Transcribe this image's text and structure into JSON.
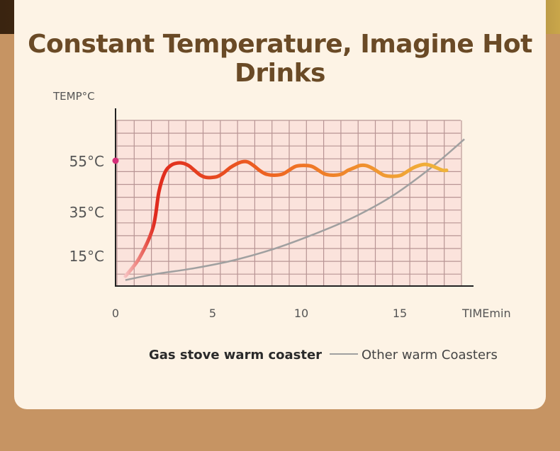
{
  "chart_data": {
    "type": "line",
    "title": "Constant Temperature, Imagine Hot Drinks",
    "ylabel": "TEMP°C",
    "xlabel": "TIMEmin",
    "x_ticks": [
      "0",
      "5",
      "10",
      "15"
    ],
    "y_ticks": [
      "15°C",
      "35°C",
      "55°C"
    ],
    "y_tick_values": [
      15,
      35,
      55
    ],
    "xlim": [
      0,
      18
    ],
    "ylim": [
      0,
      70
    ],
    "grid": true,
    "legend_position": "bottom",
    "series": [
      {
        "name": "Gas stove warm coaster",
        "colors": [
          "#e02a1e",
          "#f0b23a"
        ],
        "x": [
          0.5,
          1.2,
          1.9,
          2.2,
          2.5,
          2.8,
          3.1,
          3.4,
          3.7,
          4.0,
          4.3,
          4.6,
          4.9,
          5.2,
          5.5,
          5.8,
          6.1,
          6.4,
          6.7,
          7.0,
          7.3,
          7.6,
          7.9,
          8.2,
          8.5,
          8.8,
          9.1,
          9.4,
          9.7,
          10.0,
          10.3,
          10.6,
          10.9,
          11.2,
          11.5,
          11.8,
          12.1,
          12.4,
          12.7,
          13.0,
          13.3,
          13.6,
          13.9,
          14.2,
          14.5,
          14.8,
          15.1,
          15.4,
          15.7,
          16.0,
          16.3,
          16.6,
          16.8
        ],
        "y": [
          5,
          14,
          27,
          42,
          50,
          53,
          54,
          54,
          53,
          51,
          49,
          48,
          48,
          48.5,
          50,
          52,
          53.5,
          54.5,
          54.5,
          53,
          51,
          49.5,
          49,
          49,
          49.5,
          51,
          52.5,
          53,
          53,
          52.5,
          51,
          49.5,
          49,
          49,
          49.5,
          51,
          52,
          53,
          53,
          52,
          50.5,
          49,
          48.5,
          48.5,
          49,
          50.5,
          52,
          53,
          53.5,
          53,
          52,
          51,
          51
        ]
      },
      {
        "name": "Other warm Coasters",
        "color": "#a0a0a0",
        "x": [
          0.5,
          2,
          4,
          6,
          8,
          10,
          12,
          14,
          16,
          17.7
        ],
        "y": [
          3,
          6,
          9,
          13,
          18,
          24,
          31,
          40,
          52,
          64
        ]
      }
    ],
    "highlight_point": {
      "x": 0,
      "y": 55,
      "color": "#d6307a"
    }
  }
}
